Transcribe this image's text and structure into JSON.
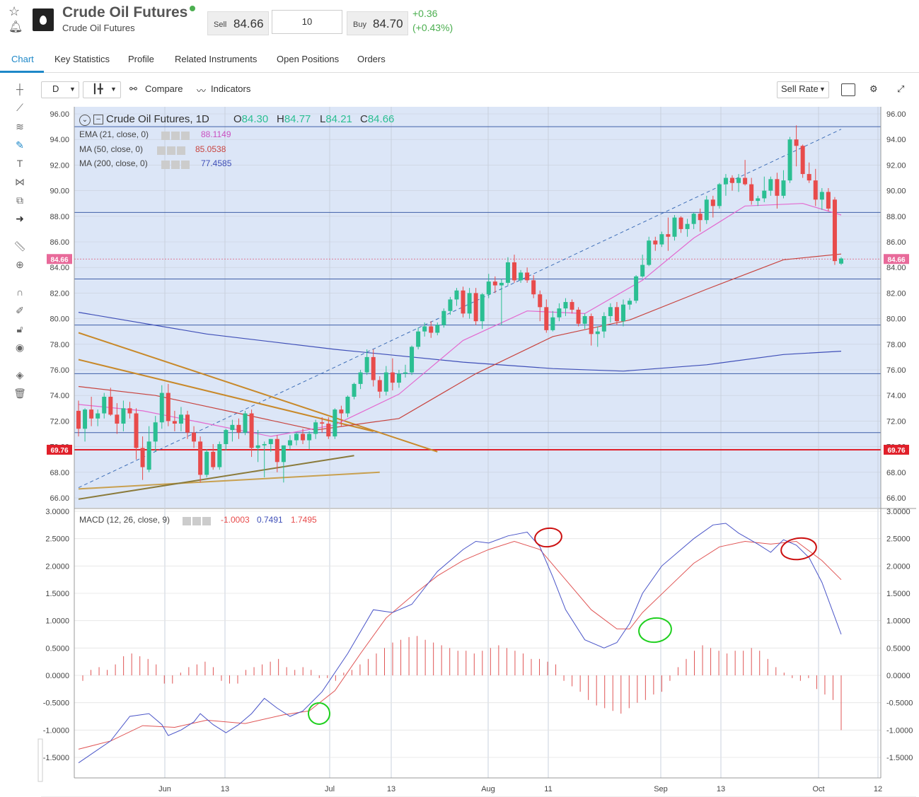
{
  "header": {
    "title": "Crude Oil Futures",
    "subtitle": "Crude Oil Futures",
    "sell_label": "Sell",
    "sell_price": "84.66",
    "quantity": "10",
    "buy_label": "Buy",
    "buy_price": "84.70",
    "change": "+0.36",
    "change_pct": "(+0.43%)"
  },
  "tabs": [
    "Chart",
    "Key Statistics",
    "Profile",
    "Related Instruments",
    "Open Positions",
    "Orders"
  ],
  "toolbar": {
    "interval": "D",
    "compare": "Compare",
    "indicators": "Indicators",
    "rate": "Sell Rate"
  },
  "legend": {
    "symbol": "Crude Oil Futures, 1D",
    "o_label": "O",
    "o": "84.30",
    "h_label": "H",
    "h": "84.77",
    "l_label": "L",
    "l": "84.21",
    "c_label": "C",
    "c": "84.66",
    "ema_name": "EMA (21, close, 0)",
    "ema_val": "88.1149",
    "ma50_name": "MA (50, close, 0)",
    "ma50_val": "85.0538",
    "ma200_name": "MA (200, close, 0)",
    "ma200_val": "77.4585",
    "macd_name": "MACD (12, 26, close, 9)",
    "macd_hist": "-1.0003",
    "macd_line": "0.7491",
    "macd_signal": "1.7495"
  },
  "price_axis": [
    "96.00",
    "94.00",
    "92.00",
    "90.00",
    "88.00",
    "86.00",
    "84.00",
    "82.00",
    "80.00",
    "78.00",
    "76.00",
    "74.00",
    "72.00",
    "70.00",
    "68.00",
    "66.00"
  ],
  "price_marker": "84.66",
  "support_marker": "69.76",
  "macd_axis": [
    "3.0000",
    "2.5000",
    "2.0000",
    "1.5000",
    "1.0000",
    "0.5000",
    "0.0000",
    "-0.5000",
    "-1.0000",
    "-1.5000"
  ],
  "x_axis": [
    "Jun",
    "13",
    "Jul",
    "13",
    "Aug",
    "11",
    "Sep",
    "13",
    "Oct",
    "12"
  ],
  "colors": {
    "up": "#2bbf92",
    "down": "#e84b4b",
    "ema": "#e36ad0",
    "ma50": "#c8443f",
    "ma200": "#3f4fb8",
    "macd": "#4a55c8",
    "signal": "#e05555",
    "trend": "#c8892a",
    "accent": "#1e88c8"
  },
  "chart_data": {
    "type": "candlestick",
    "ylim": [
      66,
      96
    ],
    "candles": [
      [
        72.8,
        73.6,
        70.8,
        71.4
      ],
      [
        71.4,
        73.0,
        70.4,
        72.9
      ],
      [
        72.9,
        73.9,
        71.6,
        72.2
      ],
      [
        72.2,
        72.9,
        71.6,
        72.6
      ],
      [
        72.6,
        74.2,
        72.2,
        73.9
      ],
      [
        73.9,
        74.6,
        72.4,
        72.5
      ],
      [
        72.5,
        73.4,
        71.0,
        71.8
      ],
      [
        71.8,
        73.6,
        71.2,
        73.0
      ],
      [
        73.0,
        73.5,
        72.2,
        72.6
      ],
      [
        72.6,
        73.0,
        69.0,
        69.9
      ],
      [
        69.9,
        70.8,
        67.4,
        68.4
      ],
      [
        68.2,
        71.6,
        68.0,
        70.4
      ],
      [
        70.4,
        72.4,
        69.6,
        71.9
      ],
      [
        71.9,
        74.8,
        71.4,
        74.2
      ],
      [
        74.2,
        74.9,
        71.6,
        72.0
      ],
      [
        72.0,
        72.8,
        71.2,
        71.8
      ],
      [
        71.8,
        73.1,
        71.2,
        72.5
      ],
      [
        72.5,
        72.8,
        70.6,
        71.1
      ],
      [
        71.1,
        71.6,
        69.9,
        70.4
      ],
      [
        70.4,
        70.8,
        67.2,
        67.8
      ],
      [
        67.8,
        69.8,
        67.6,
        69.6
      ],
      [
        69.6,
        70.2,
        68.2,
        68.4
      ],
      [
        68.4,
        70.4,
        68.2,
        70.2
      ],
      [
        70.2,
        71.4,
        69.7,
        71.3
      ],
      [
        71.3,
        72.1,
        70.4,
        71.7
      ],
      [
        71.7,
        72.2,
        70.6,
        71.1
      ],
      [
        71.1,
        72.8,
        70.9,
        72.6
      ],
      [
        72.6,
        72.9,
        69.2,
        69.9
      ],
      [
        69.9,
        71.3,
        68.8,
        70.1
      ],
      [
        70.1,
        70.4,
        67.6,
        70.2
      ],
      [
        70.2,
        70.6,
        69.6,
        70.6
      ],
      [
        70.6,
        70.9,
        68.0,
        68.8
      ],
      [
        68.8,
        70.0,
        67.2,
        70.1
      ],
      [
        70.1,
        70.9,
        69.8,
        70.5
      ],
      [
        70.5,
        71.1,
        70.1,
        71.0
      ],
      [
        71.0,
        71.4,
        70.2,
        70.5
      ],
      [
        70.5,
        71.2,
        69.8,
        71.0
      ],
      [
        71.0,
        72.1,
        70.6,
        71.9
      ],
      [
        71.9,
        72.3,
        71.1,
        71.8
      ],
      [
        71.8,
        72.3,
        70.6,
        70.8
      ],
      [
        70.8,
        73.0,
        70.6,
        72.9
      ],
      [
        72.9,
        73.2,
        71.6,
        72.6
      ],
      [
        72.6,
        74.0,
        72.3,
        73.9
      ],
      [
        73.9,
        75.0,
        73.7,
        74.9
      ],
      [
        74.9,
        76.0,
        74.5,
        75.8
      ],
      [
        75.8,
        77.6,
        75.6,
        77.0
      ],
      [
        77.0,
        77.6,
        74.7,
        75.2
      ],
      [
        75.2,
        75.5,
        73.8,
        74.3
      ],
      [
        74.3,
        76.3,
        74.0,
        75.8
      ],
      [
        75.8,
        76.9,
        74.4,
        75.0
      ],
      [
        75.0,
        76.0,
        74.6,
        75.7
      ],
      [
        75.7,
        76.4,
        75.4,
        75.8
      ],
      [
        75.8,
        77.9,
        75.6,
        77.8
      ],
      [
        77.8,
        79.3,
        77.6,
        79.0
      ],
      [
        79.0,
        79.7,
        78.6,
        79.4
      ],
      [
        79.4,
        79.8,
        78.5,
        78.9
      ],
      [
        78.9,
        79.7,
        78.7,
        79.5
      ],
      [
        79.5,
        80.8,
        79.3,
        80.6
      ],
      [
        80.6,
        81.7,
        80.3,
        81.5
      ],
      [
        81.5,
        82.4,
        81.0,
        82.2
      ],
      [
        82.2,
        82.5,
        80.1,
        80.4
      ],
      [
        80.4,
        82.4,
        80.0,
        82.0
      ],
      [
        82.0,
        82.4,
        79.5,
        79.8
      ],
      [
        79.8,
        82.0,
        79.2,
        81.9
      ],
      [
        81.9,
        83.5,
        81.6,
        82.9
      ],
      [
        82.9,
        83.3,
        82.0,
        82.6
      ],
      [
        82.6,
        83.1,
        79.5,
        82.8
      ],
      [
        82.8,
        84.8,
        82.6,
        84.4
      ],
      [
        84.4,
        85.0,
        82.8,
        83.0
      ],
      [
        83.0,
        83.8,
        82.8,
        83.6
      ],
      [
        83.6,
        84.0,
        82.8,
        83.0
      ],
      [
        83.0,
        83.4,
        81.6,
        81.9
      ],
      [
        81.9,
        82.2,
        79.8,
        80.9
      ],
      [
        80.9,
        81.5,
        78.9,
        79.1
      ],
      [
        79.1,
        80.6,
        79.0,
        80.1
      ],
      [
        80.1,
        81.2,
        79.8,
        80.8
      ],
      [
        80.8,
        81.6,
        80.2,
        81.3
      ],
      [
        81.3,
        81.5,
        80.4,
        80.7
      ],
      [
        80.7,
        80.9,
        79.4,
        79.6
      ],
      [
        79.6,
        80.4,
        79.2,
        80.2
      ],
      [
        80.2,
        80.4,
        77.9,
        78.8
      ],
      [
        78.8,
        79.4,
        77.8,
        79.0
      ],
      [
        79.0,
        80.5,
        78.5,
        80.2
      ],
      [
        80.2,
        81.2,
        79.7,
        80.9
      ],
      [
        80.9,
        81.3,
        79.5,
        79.8
      ],
      [
        79.8,
        81.5,
        79.4,
        81.1
      ],
      [
        81.1,
        81.6,
        80.7,
        81.4
      ],
      [
        81.4,
        83.4,
        81.2,
        83.3
      ],
      [
        83.3,
        85.0,
        83.2,
        84.2
      ],
      [
        84.2,
        86.4,
        84.1,
        86.1
      ],
      [
        86.1,
        86.4,
        85.3,
        85.8
      ],
      [
        85.8,
        86.8,
        85.6,
        86.6
      ],
      [
        86.6,
        87.9,
        85.3,
        86.4
      ],
      [
        86.4,
        88.1,
        86.1,
        87.9
      ],
      [
        87.9,
        88.0,
        86.7,
        87.0
      ],
      [
        87.0,
        87.8,
        86.4,
        87.4
      ],
      [
        87.4,
        88.3,
        87.0,
        88.2
      ],
      [
        88.2,
        88.6,
        86.8,
        87.7
      ],
      [
        87.7,
        89.6,
        87.4,
        89.3
      ],
      [
        89.3,
        89.6,
        87.9,
        88.8
      ],
      [
        88.8,
        90.6,
        88.6,
        90.5
      ],
      [
        90.5,
        91.3,
        89.6,
        91.0
      ],
      [
        91.0,
        91.2,
        90.0,
        90.6
      ],
      [
        90.6,
        91.3,
        89.9,
        91.0
      ],
      [
        91.0,
        92.4,
        90.4,
        90.5
      ],
      [
        90.5,
        91.0,
        88.9,
        89.2
      ],
      [
        89.2,
        89.6,
        88.8,
        89.4
      ],
      [
        89.4,
        91.1,
        89.1,
        90.0
      ],
      [
        90.0,
        91.1,
        89.6,
        90.9
      ],
      [
        90.9,
        91.4,
        88.6,
        89.6
      ],
      [
        89.6,
        91.6,
        89.4,
        90.8
      ],
      [
        90.8,
        94.2,
        90.6,
        94.0
      ],
      [
        94.0,
        95.1,
        91.9,
        93.5
      ],
      [
        93.5,
        93.6,
        91.0,
        91.3
      ],
      [
        91.3,
        92.2,
        90.6,
        90.8
      ],
      [
        90.8,
        91.7,
        88.8,
        89.3
      ],
      [
        89.3,
        90.2,
        88.5,
        89.9
      ],
      [
        89.9,
        90.2,
        88.4,
        88.6
      ],
      [
        89.3,
        89.5,
        84.2,
        84.5
      ],
      [
        84.3,
        84.8,
        84.2,
        84.7
      ]
    ],
    "ema21": [
      [
        0,
        73.3
      ],
      [
        10,
        72.8
      ],
      [
        20,
        71.8
      ],
      [
        30,
        70.8
      ],
      [
        40,
        71.7
      ],
      [
        50,
        74.1
      ],
      [
        60,
        78.3
      ],
      [
        70,
        80.6
      ],
      [
        79,
        80.4
      ],
      [
        88,
        83.0
      ],
      [
        96,
        86.3
      ],
      [
        104,
        88.8
      ],
      [
        113,
        89.0
      ],
      [
        119,
        88.1
      ]
    ],
    "ma50": [
      [
        0,
        74.7
      ],
      [
        12,
        74.0
      ],
      [
        25,
        72.6
      ],
      [
        37,
        71.3
      ],
      [
        50,
        72.2
      ],
      [
        62,
        75.7
      ],
      [
        74,
        78.6
      ],
      [
        86,
        79.9
      ],
      [
        98,
        82.3
      ],
      [
        110,
        84.6
      ],
      [
        119,
        85.05
      ]
    ],
    "ma200": [
      [
        0,
        80.5
      ],
      [
        20,
        78.8
      ],
      [
        40,
        77.6
      ],
      [
        60,
        76.6
      ],
      [
        74,
        76.1
      ],
      [
        85,
        75.9
      ],
      [
        98,
        76.4
      ],
      [
        110,
        77.2
      ],
      [
        119,
        77.46
      ]
    ],
    "hlines": [
      95.0,
      88.3,
      83.1,
      79.5,
      75.7,
      71.1
    ],
    "support": 69.76,
    "trend_dashed": [
      [
        0,
        66.8
      ],
      [
        119,
        94.8
      ]
    ],
    "trend_lines": [
      [
        [
          0,
          78.9
        ],
        [
          56,
          69.6
        ]
      ],
      [
        [
          0,
          76.8
        ],
        [
          46,
          71.2
        ]
      ],
      [
        [
          0,
          66.7
        ],
        [
          47,
          68.0
        ]
      ],
      [
        [
          0,
          65.9
        ],
        [
          43,
          69.3
        ]
      ]
    ],
    "macd": {
      "ylim": [
        -1.9,
        3.0
      ],
      "macd": [
        [
          0,
          -1.6
        ],
        [
          5,
          -1.2
        ],
        [
          8,
          -0.75
        ],
        [
          11,
          -0.7
        ],
        [
          13,
          -0.9
        ],
        [
          14,
          -1.1
        ],
        [
          16,
          -1.0
        ],
        [
          18,
          -0.85
        ],
        [
          19,
          -0.7
        ],
        [
          21,
          -0.9
        ],
        [
          23,
          -1.05
        ],
        [
          25,
          -0.9
        ],
        [
          27,
          -0.7
        ],
        [
          29,
          -0.42
        ],
        [
          31,
          -0.6
        ],
        [
          33,
          -0.75
        ],
        [
          35,
          -0.65
        ],
        [
          38,
          -0.3
        ],
        [
          42,
          0.4
        ],
        [
          46,
          1.2
        ],
        [
          49,
          1.15
        ],
        [
          52,
          1.3
        ],
        [
          56,
          1.9
        ],
        [
          60,
          2.3
        ],
        [
          62,
          2.45
        ],
        [
          64,
          2.42
        ],
        [
          67,
          2.55
        ],
        [
          70,
          2.62
        ],
        [
          72,
          2.35
        ],
        [
          74,
          1.8
        ],
        [
          76,
          1.2
        ],
        [
          79,
          0.65
        ],
        [
          82,
          0.5
        ],
        [
          84,
          0.6
        ],
        [
          86,
          0.95
        ],
        [
          88,
          1.5
        ],
        [
          91,
          2.0
        ],
        [
          94,
          2.3
        ],
        [
          96,
          2.5
        ],
        [
          99,
          2.75
        ],
        [
          101,
          2.78
        ],
        [
          103,
          2.6
        ],
        [
          106,
          2.4
        ],
        [
          108,
          2.25
        ],
        [
          110,
          2.48
        ],
        [
          112,
          2.38
        ],
        [
          114,
          2.15
        ],
        [
          116,
          1.7
        ],
        [
          119,
          0.75
        ]
      ],
      "signal": [
        [
          0,
          -1.35
        ],
        [
          5,
          -1.2
        ],
        [
          10,
          -0.92
        ],
        [
          15,
          -0.95
        ],
        [
          20,
          -0.82
        ],
        [
          26,
          -0.88
        ],
        [
          32,
          -0.72
        ],
        [
          36,
          -0.65
        ],
        [
          40,
          -0.28
        ],
        [
          44,
          0.4
        ],
        [
          48,
          1.05
        ],
        [
          52,
          1.45
        ],
        [
          56,
          1.82
        ],
        [
          60,
          2.1
        ],
        [
          64,
          2.3
        ],
        [
          68,
          2.45
        ],
        [
          72,
          2.3
        ],
        [
          76,
          1.75
        ],
        [
          80,
          1.2
        ],
        [
          84,
          0.85
        ],
        [
          86,
          0.85
        ],
        [
          88,
          1.15
        ],
        [
          92,
          1.6
        ],
        [
          96,
          2.05
        ],
        [
          100,
          2.35
        ],
        [
          104,
          2.45
        ],
        [
          108,
          2.4
        ],
        [
          112,
          2.45
        ],
        [
          116,
          2.1
        ],
        [
          119,
          1.75
        ]
      ],
      "hist": [
        -0.1,
        0.1,
        0.15,
        0.1,
        0.2,
        0.35,
        0.4,
        0.35,
        0.3,
        0.2,
        -0.15,
        -0.15,
        0.05,
        0.15,
        0.2,
        0.25,
        0.15,
        -0.1,
        -0.15,
        -0.15,
        0.1,
        0.15,
        0.2,
        0.25,
        0.3,
        0.15,
        0.1,
        0.15,
        0.1,
        -0.05,
        -0.05,
        -0.1,
        0.05,
        0.1,
        0.2,
        0.3,
        0.4,
        0.5,
        0.6,
        0.65,
        0.7,
        0.72,
        0.65,
        0.6,
        0.55,
        0.5,
        0.45,
        0.45,
        0.4,
        0.45,
        0.5,
        0.55,
        0.5,
        0.45,
        0.4,
        0.3,
        0.3,
        0.25,
        0.2,
        -0.1,
        -0.2,
        -0.3,
        -0.45,
        -0.55,
        -0.6,
        -0.65,
        -0.7,
        -0.6,
        -0.5,
        -0.45,
        -0.35,
        -0.3,
        -0.1,
        0.15,
        0.3,
        0.45,
        0.55,
        0.5,
        0.45,
        0.4,
        0.45,
        0.45,
        0.5,
        0.45,
        0.3,
        0.15,
        0.05,
        -0.05,
        -0.1,
        -0.05,
        -0.25,
        -0.35,
        -0.45,
        -1.0
      ]
    }
  }
}
